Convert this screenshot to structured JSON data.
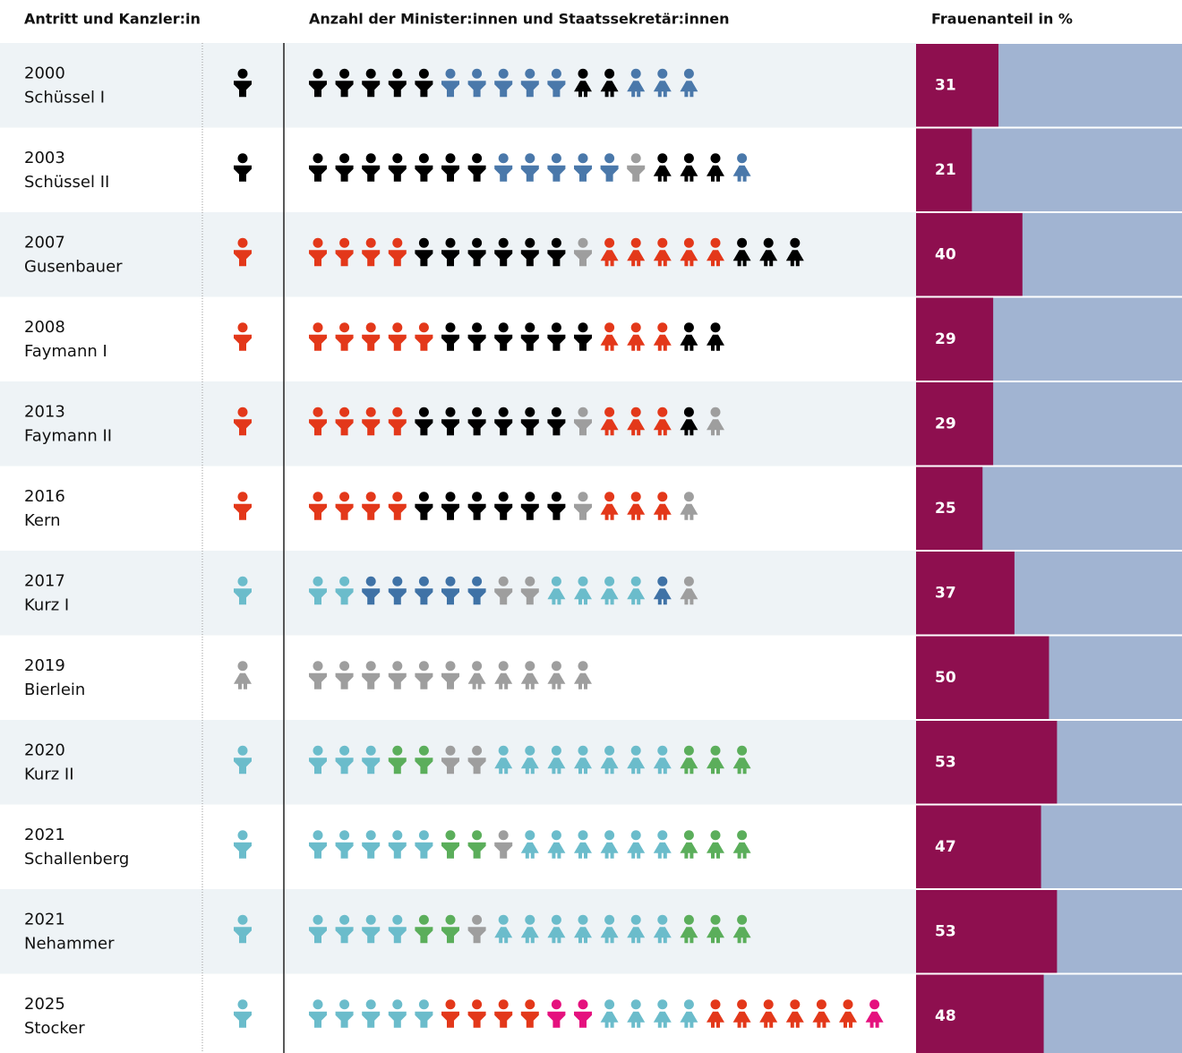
{
  "header": {
    "col1": "Antritt und Kanzler:in",
    "col2": "Anzahl der Minister:innen und Staatssekretär:innen",
    "col3": "Frauenanteil in %"
  },
  "bar_colors": {
    "share": "#8e0f4f",
    "rest": "#a1b4d2"
  },
  "rows": [
    {
      "year": "2000",
      "name": "Schüssel I",
      "chancellor_color": "#000000",
      "chancellor_female": false,
      "men": [
        "#000000",
        "#000000",
        "#000000",
        "#000000",
        "#000000",
        "#4a78aa",
        "#4a78aa",
        "#4a78aa",
        "#4a78aa",
        "#4a78aa"
      ],
      "women": [
        "#000000",
        "#000000",
        "#4a78aa",
        "#4a78aa",
        "#4a78aa"
      ],
      "share": 31
    },
    {
      "year": "2003",
      "name": "Schüssel II",
      "chancellor_color": "#000000",
      "chancellor_female": false,
      "men": [
        "#000000",
        "#000000",
        "#000000",
        "#000000",
        "#000000",
        "#000000",
        "#000000",
        "#4a78aa",
        "#4a78aa",
        "#4a78aa",
        "#4a78aa",
        "#4a78aa",
        "#9e9e9e"
      ],
      "women": [
        "#000000",
        "#000000",
        "#000000",
        "#4a78aa"
      ],
      "share": 21
    },
    {
      "year": "2007",
      "name": "Gusenbauer",
      "chancellor_color": "#e3381a",
      "chancellor_female": false,
      "men": [
        "#e3381a",
        "#e3381a",
        "#e3381a",
        "#e3381a",
        "#000000",
        "#000000",
        "#000000",
        "#000000",
        "#000000",
        "#000000",
        "#9e9e9e"
      ],
      "women": [
        "#e3381a",
        "#e3381a",
        "#e3381a",
        "#e3381a",
        "#e3381a",
        "#000000",
        "#000000",
        "#000000"
      ],
      "share": 40
    },
    {
      "year": "2008",
      "name": "Faymann I",
      "chancellor_color": "#e3381a",
      "chancellor_female": false,
      "men": [
        "#e3381a",
        "#e3381a",
        "#e3381a",
        "#e3381a",
        "#e3381a",
        "#000000",
        "#000000",
        "#000000",
        "#000000",
        "#000000",
        "#000000"
      ],
      "women": [
        "#e3381a",
        "#e3381a",
        "#e3381a",
        "#000000",
        "#000000"
      ],
      "share": 29
    },
    {
      "year": "2013",
      "name": "Faymann II",
      "chancellor_color": "#e3381a",
      "chancellor_female": false,
      "men": [
        "#e3381a",
        "#e3381a",
        "#e3381a",
        "#e3381a",
        "#000000",
        "#000000",
        "#000000",
        "#000000",
        "#000000",
        "#000000",
        "#9e9e9e"
      ],
      "women": [
        "#e3381a",
        "#e3381a",
        "#e3381a",
        "#000000",
        "#9e9e9e"
      ],
      "share": 29
    },
    {
      "year": "2016",
      "name": "Kern",
      "chancellor_color": "#e3381a",
      "chancellor_female": false,
      "men": [
        "#e3381a",
        "#e3381a",
        "#e3381a",
        "#e3381a",
        "#000000",
        "#000000",
        "#000000",
        "#000000",
        "#000000",
        "#000000",
        "#9e9e9e"
      ],
      "women": [
        "#e3381a",
        "#e3381a",
        "#e3381a",
        "#9e9e9e"
      ],
      "share": 25
    },
    {
      "year": "2017",
      "name": "Kurz I",
      "chancellor_color": "#6bbccb",
      "chancellor_female": false,
      "men": [
        "#6bbccb",
        "#6bbccb",
        "#3f72a6",
        "#3f72a6",
        "#3f72a6",
        "#3f72a6",
        "#3f72a6",
        "#9e9e9e",
        "#9e9e9e"
      ],
      "women": [
        "#6bbccb",
        "#6bbccb",
        "#6bbccb",
        "#6bbccb",
        "#3f72a6",
        "#9e9e9e"
      ],
      "share": 37
    },
    {
      "year": "2019",
      "name": "Bierlein",
      "chancellor_color": "#9e9e9e",
      "chancellor_female": true,
      "men": [
        "#9e9e9e",
        "#9e9e9e",
        "#9e9e9e",
        "#9e9e9e",
        "#9e9e9e",
        "#9e9e9e"
      ],
      "women": [
        "#9e9e9e",
        "#9e9e9e",
        "#9e9e9e",
        "#9e9e9e",
        "#9e9e9e"
      ],
      "share": 50
    },
    {
      "year": "2020",
      "name": "Kurz II",
      "chancellor_color": "#6bbccb",
      "chancellor_female": false,
      "men": [
        "#6bbccb",
        "#6bbccb",
        "#6bbccb",
        "#5bae5b",
        "#5bae5b",
        "#9e9e9e",
        "#9e9e9e"
      ],
      "women": [
        "#6bbccb",
        "#6bbccb",
        "#6bbccb",
        "#6bbccb",
        "#6bbccb",
        "#6bbccb",
        "#6bbccb",
        "#5bae5b",
        "#5bae5b",
        "#5bae5b"
      ],
      "share": 53
    },
    {
      "year": "2021",
      "name": "Schallenberg",
      "chancellor_color": "#6bbccb",
      "chancellor_female": false,
      "men": [
        "#6bbccb",
        "#6bbccb",
        "#6bbccb",
        "#6bbccb",
        "#6bbccb",
        "#5bae5b",
        "#5bae5b",
        "#9e9e9e"
      ],
      "women": [
        "#6bbccb",
        "#6bbccb",
        "#6bbccb",
        "#6bbccb",
        "#6bbccb",
        "#6bbccb",
        "#5bae5b",
        "#5bae5b",
        "#5bae5b"
      ],
      "share": 47
    },
    {
      "year": "2021",
      "name": "Nehammer",
      "chancellor_color": "#6bbccb",
      "chancellor_female": false,
      "men": [
        "#6bbccb",
        "#6bbccb",
        "#6bbccb",
        "#6bbccb",
        "#5bae5b",
        "#5bae5b",
        "#9e9e9e"
      ],
      "women": [
        "#6bbccb",
        "#6bbccb",
        "#6bbccb",
        "#6bbccb",
        "#6bbccb",
        "#6bbccb",
        "#6bbccb",
        "#5bae5b",
        "#5bae5b",
        "#5bae5b"
      ],
      "share": 53
    },
    {
      "year": "2025",
      "name": "Stocker",
      "chancellor_color": "#6bbccb",
      "chancellor_female": false,
      "men": [
        "#6bbccb",
        "#6bbccb",
        "#6bbccb",
        "#6bbccb",
        "#6bbccb",
        "#e3381a",
        "#e3381a",
        "#e3381a",
        "#e3381a",
        "#e5117e",
        "#e5117e"
      ],
      "women": [
        "#6bbccb",
        "#6bbccb",
        "#6bbccb",
        "#6bbccb",
        "#e3381a",
        "#e3381a",
        "#e3381a",
        "#e3381a",
        "#e3381a",
        "#e3381a",
        "#e5117e"
      ],
      "share": 48
    }
  ]
}
